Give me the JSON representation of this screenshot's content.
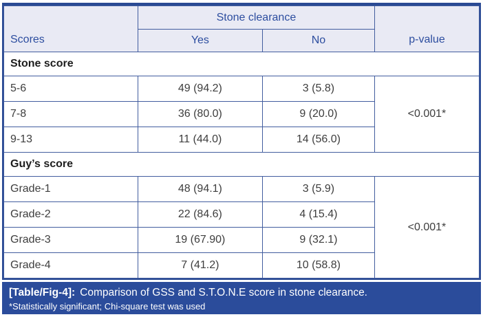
{
  "colors": {
    "header_bg": "#e9eaf4",
    "header_text": "#2c4d9f",
    "inner_border": "#415c9e",
    "outer_border": "#2a4a94",
    "body_text": "#3d3d3d",
    "caption_bg": "#2b4c9b",
    "caption_text": "#ffffff"
  },
  "table": {
    "header": {
      "group_label": "Stone clearance",
      "col_scores": "Scores",
      "col_yes": "Yes",
      "col_no": "No",
      "col_pvalue": "p-value"
    },
    "sections": [
      {
        "title": "Stone score",
        "p_value": "<0.001*",
        "rows": [
          {
            "label": "5-6",
            "yes": "49 (94.2)",
            "no": "3 (5.8)"
          },
          {
            "label": "7-8",
            "yes": "36 (80.0)",
            "no": "9 (20.0)"
          },
          {
            "label": "9-13",
            "yes": "11 (44.0)",
            "no": "14 (56.0)"
          }
        ]
      },
      {
        "title": "Guy’s score",
        "p_value": "<0.001*",
        "rows": [
          {
            "label": "Grade-1",
            "yes": "48 (94.1)",
            "no": "3 (5.9)"
          },
          {
            "label": "Grade-2",
            "yes": "22 (84.6)",
            "no": "4 (15.4)"
          },
          {
            "label": "Grade-3",
            "yes": "19 (67.90)",
            "no": "9 (32.1)"
          },
          {
            "label": "Grade-4",
            "yes": "7 (41.2)",
            "no": "10 (58.8)"
          }
        ]
      }
    ]
  },
  "caption": {
    "tag": "[Table/Fig-4]:",
    "text": "Comparison of GSS and S.T.O.N.E score in stone clearance.",
    "footnote": "*Statistically significant; Chi-square test was used"
  }
}
